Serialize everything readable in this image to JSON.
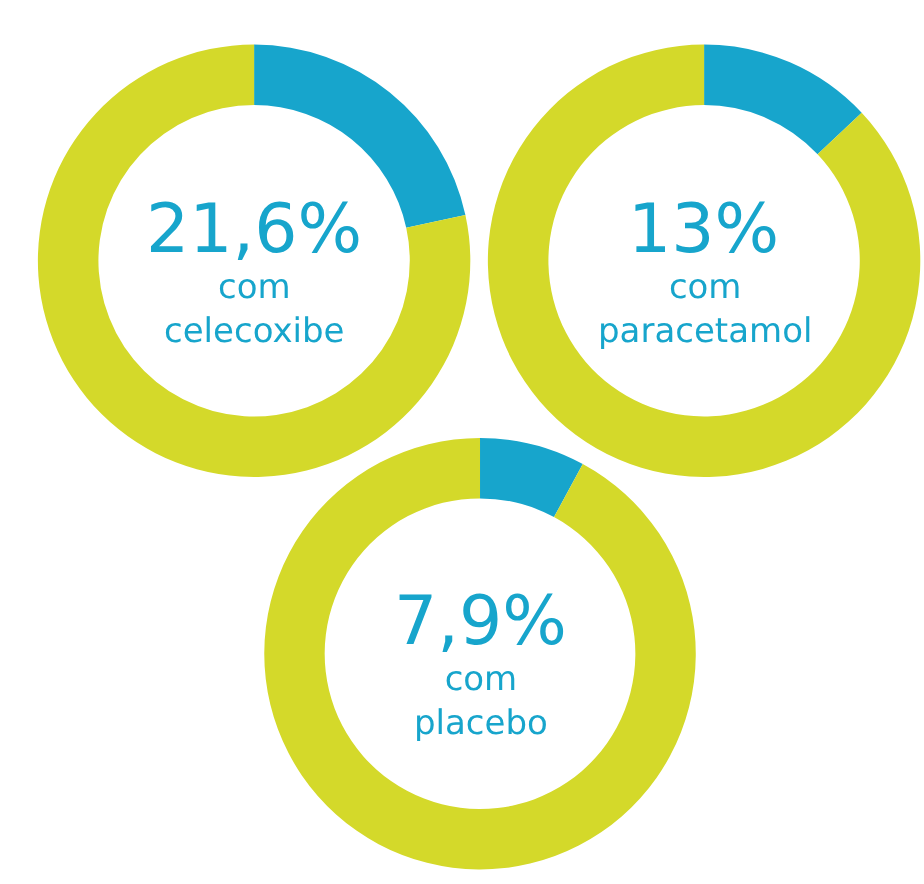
{
  "chart_data": [
    {
      "type": "donut",
      "categories": [
        null,
        null
      ],
      "values": [
        21.6,
        78.4
      ],
      "colors": [
        "#17a5cc",
        "#d4d92a"
      ],
      "annotations": [
        "21,6%",
        "com\ncelecoxibe"
      ]
    },
    {
      "type": "donut",
      "categories": [
        null,
        null
      ],
      "values": [
        13,
        87
      ],
      "colors": [
        "#17a5cc",
        "#d4d92a"
      ],
      "annotations": [
        "13%",
        "com\nparacetamol"
      ]
    },
    {
      "type": "donut",
      "categories": [
        null,
        null
      ],
      "values": [
        7.9,
        92.1
      ],
      "colors": [
        "#17a5cc",
        "#d4d92a"
      ],
      "annotations": [
        "7,9%",
        "com\nplacebo"
      ]
    }
  ]
}
